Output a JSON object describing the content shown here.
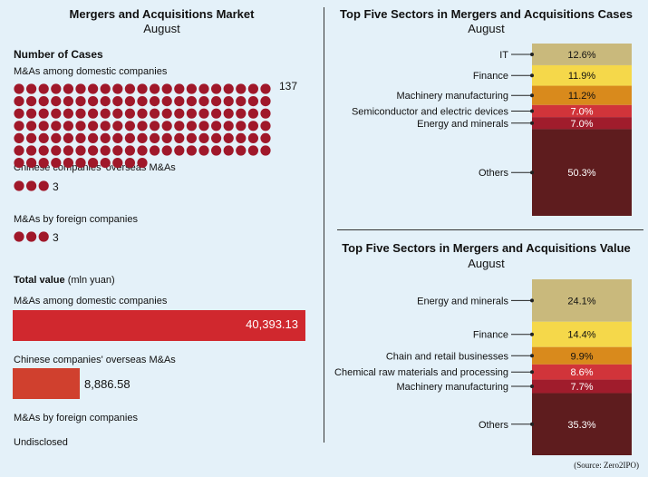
{
  "left": {
    "title": "Mergers and Acquisitions Market",
    "subtitle": "August",
    "cases_header": "Number of Cases",
    "cases": [
      {
        "label": "M&As among domestic companies",
        "value": 137
      },
      {
        "label": "Chinese companies' overseas M&As",
        "value": 3
      },
      {
        "label": "M&As by foreign companies",
        "value": 3
      }
    ],
    "total_header": "Total value",
    "total_unit": "(mln yuan)",
    "values": [
      {
        "label": "M&As among domestic companies",
        "value_text": "40,393.13",
        "value": 40393.13
      },
      {
        "label": "Chinese companies' overseas M&As",
        "value_text": "8,886.58",
        "value": 8886.58
      },
      {
        "label": "M&As by foreign companies",
        "value_text": "Undisclosed"
      }
    ]
  },
  "right_top": {
    "title": "Top Five Sectors in Mergers and Acquisitions Cases",
    "subtitle": "August"
  },
  "right_bottom": {
    "title": "Top Five Sectors in Mergers and Acquisitions Value",
    "subtitle": "August"
  },
  "source": "(Source: Zero2IPO)",
  "colors": {
    "dot": "#a0182a",
    "bar_red": "#d0282e",
    "bar_small": "#d0402e",
    "seg1": "#c9b97c",
    "seg2": "#f5d84a",
    "seg3": "#d98a1c",
    "seg4": "#d1343a",
    "seg5": "#a01c2c",
    "seg6": "#5e1c1e"
  },
  "chart_data": [
    {
      "type": "bar",
      "title": "Top Five Sectors in Mergers and Acquisitions Cases",
      "subtitle": "August",
      "unit": "%",
      "categories": [
        "IT",
        "Finance",
        "Machinery manufacturing",
        "Semiconductor and electric devices",
        "Energy and minerals",
        "Others"
      ],
      "values": [
        12.6,
        11.9,
        11.2,
        7.0,
        7.0,
        50.3
      ],
      "labels": [
        "12.6%",
        "11.9%",
        "11.2%",
        "7.0%",
        "7.0%",
        "50.3%"
      ]
    },
    {
      "type": "bar",
      "title": "Top Five Sectors in Mergers and Acquisitions Value",
      "subtitle": "August",
      "unit": "%",
      "categories": [
        "Energy and minerals",
        "Finance",
        "Chain and retail businesses",
        "Chemical raw materials and processing",
        "Machinery manufacturing",
        "Others"
      ],
      "values": [
        24.1,
        14.4,
        9.9,
        8.6,
        7.7,
        35.3
      ],
      "labels": [
        "24.1%",
        "14.4%",
        "9.9%",
        "8.6%",
        "7.7%",
        "35.3%"
      ]
    }
  ]
}
